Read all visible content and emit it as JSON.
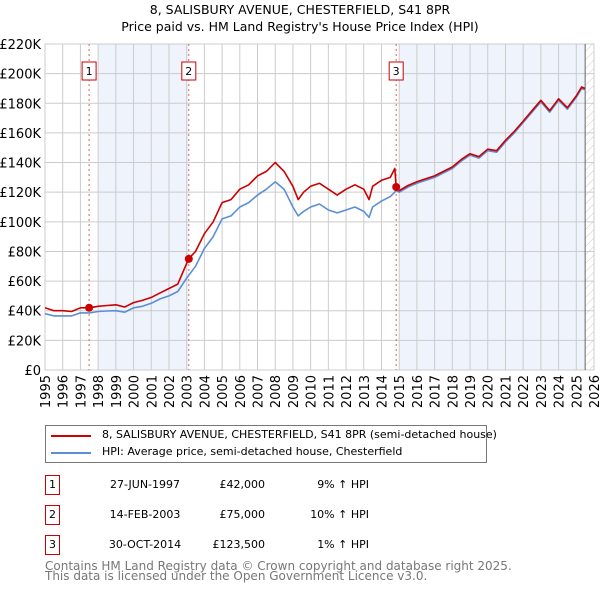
{
  "title_line1": "8, SALISBURY AVENUE, CHESTERFIELD, S41 8PR",
  "title_line2": "Price paid vs. HM Land Registry's House Price Index (HPI)",
  "colors": {
    "property": "#cc0000",
    "hpi": "#5b8fd4",
    "shade": "#eef3fc",
    "grid": "#cccccc"
  },
  "chart_data": {
    "type": "line",
    "xlim": [
      1995,
      2026
    ],
    "ylim": [
      0,
      220000
    ],
    "y_ticks": [
      0,
      20000,
      40000,
      60000,
      80000,
      100000,
      120000,
      140000,
      160000,
      180000,
      200000,
      220000
    ],
    "y_tick_labels": [
      "£0",
      "£20K",
      "£40K",
      "£60K",
      "£80K",
      "£100K",
      "£120K",
      "£140K",
      "£160K",
      "£180K",
      "£200K",
      "£220K"
    ],
    "x_tick_labels": [
      "1995",
      "1996",
      "1997",
      "1998",
      "1999",
      "2000",
      "2001",
      "2002",
      "2003",
      "2004",
      "2005",
      "2006",
      "2007",
      "2008",
      "2009",
      "2010",
      "2011",
      "2012",
      "2013",
      "2014",
      "2015",
      "2016",
      "2017",
      "2018",
      "2019",
      "2020",
      "2021",
      "2022",
      "2023",
      "2024",
      "2025",
      "2026"
    ],
    "grid": true,
    "shaded_ranges": [
      [
        1998,
        2003.1
      ],
      [
        2015,
        2025.5
      ]
    ],
    "future_hatch_from": 2025.5,
    "series": [
      {
        "name": "8, SALISBURY AVENUE, CHESTERFIELD, S41 8PR (semi-detached house)",
        "color": "#cc0000",
        "x": [
          1995,
          1995.5,
          1996,
          1996.5,
          1997,
          1997.5,
          1998,
          1998.5,
          1999,
          1999.5,
          2000,
          2000.5,
          2001,
          2001.5,
          2002,
          2002.5,
          2003,
          2003.1,
          2003.5,
          2004,
          2004.5,
          2005,
          2005.5,
          2006,
          2006.5,
          2007,
          2007.5,
          2008,
          2008.5,
          2009,
          2009.3,
          2009.6,
          2010,
          2010.5,
          2011,
          2011.5,
          2012,
          2012.5,
          2013,
          2013.3,
          2013.5,
          2014,
          2014.5,
          2014.75,
          2014.83,
          2015,
          2015.5,
          2016,
          2016.5,
          2017,
          2017.5,
          2018,
          2018.5,
          2019,
          2019.5,
          2020,
          2020.5,
          2021,
          2021.5,
          2022,
          2022.5,
          2023,
          2023.5,
          2024,
          2024.5,
          2025,
          2025.3,
          2025.5
        ],
        "y": [
          42000,
          40000,
          40000,
          39500,
          42000,
          42000,
          43000,
          43500,
          44000,
          42500,
          45500,
          47000,
          49000,
          52000,
          55000,
          58000,
          72000,
          75000,
          80000,
          92000,
          100000,
          113000,
          115000,
          122000,
          125000,
          131000,
          134000,
          140000,
          134000,
          124000,
          115000,
          120000,
          124000,
          126000,
          122000,
          118000,
          122000,
          125000,
          122000,
          115000,
          124000,
          128000,
          130000,
          136000,
          123500,
          121000,
          124500,
          127000,
          129000,
          131000,
          134000,
          137000,
          142000,
          146000,
          144000,
          149000,
          148000,
          155000,
          161000,
          168000,
          175000,
          182000,
          175000,
          183000,
          177000,
          185000,
          191000,
          190000
        ]
      },
      {
        "name": "HPI: Average price, semi-detached house, Chesterfield",
        "color": "#5b8fd4",
        "x": [
          1995,
          1995.5,
          1996,
          1996.5,
          1997,
          1997.5,
          1998,
          1998.5,
          1999,
          1999.5,
          2000,
          2000.5,
          2001,
          2001.5,
          2002,
          2002.5,
          2003,
          2003.5,
          2004,
          2004.5,
          2005,
          2005.5,
          2006,
          2006.5,
          2007,
          2007.5,
          2008,
          2008.5,
          2009,
          2009.3,
          2009.6,
          2010,
          2010.5,
          2011,
          2011.5,
          2012,
          2012.5,
          2013,
          2013.3,
          2013.5,
          2014,
          2014.5,
          2014.83,
          2015,
          2015.5,
          2016,
          2016.5,
          2017,
          2017.5,
          2018,
          2018.5,
          2019,
          2019.5,
          2020,
          2020.5,
          2021,
          2021.5,
          2022,
          2022.5,
          2023,
          2023.5,
          2024,
          2024.5,
          2025,
          2025.3,
          2025.5
        ],
        "y": [
          38000,
          36500,
          36500,
          36500,
          38500,
          38500,
          39500,
          39800,
          40000,
          39000,
          42000,
          43000,
          45000,
          48000,
          50000,
          53000,
          62000,
          70000,
          82000,
          90000,
          102000,
          104000,
          110000,
          113000,
          118000,
          122000,
          127000,
          122000,
          110000,
          104000,
          107000,
          110000,
          112000,
          108000,
          106000,
          108000,
          110000,
          107000,
          103000,
          110000,
          114000,
          117000,
          121000,
          120000,
          123500,
          126000,
          128000,
          130000,
          133000,
          136000,
          141000,
          145000,
          143000,
          148000,
          147000,
          154000,
          160000,
          167000,
          174000,
          181000,
          174000,
          182000,
          176000,
          184000,
          190000,
          189000
        ]
      }
    ],
    "sales": [
      {
        "label": "1",
        "x": 1997.49,
        "price": 42000
      },
      {
        "label": "2",
        "x": 2003.12,
        "price": 75000
      },
      {
        "label": "3",
        "x": 2014.83,
        "price": 123500
      }
    ]
  },
  "legend": {
    "property": "8, SALISBURY AVENUE, CHESTERFIELD, S41 8PR (semi-detached house)",
    "hpi": "HPI: Average price, semi-detached house, Chesterfield"
  },
  "transactions": [
    {
      "num": "1",
      "date": "27-JUN-1997",
      "price": "£42,000",
      "hpi": "9% ↑ HPI"
    },
    {
      "num": "2",
      "date": "14-FEB-2003",
      "price": "£75,000",
      "hpi": "10% ↑ HPI"
    },
    {
      "num": "3",
      "date": "30-OCT-2014",
      "price": "£123,500",
      "hpi": "1% ↑ HPI"
    }
  ],
  "footer": {
    "line1": "Contains HM Land Registry data © Crown copyright and database right 2025.",
    "line2": "This data is licensed under the Open Government Licence v3.0."
  }
}
